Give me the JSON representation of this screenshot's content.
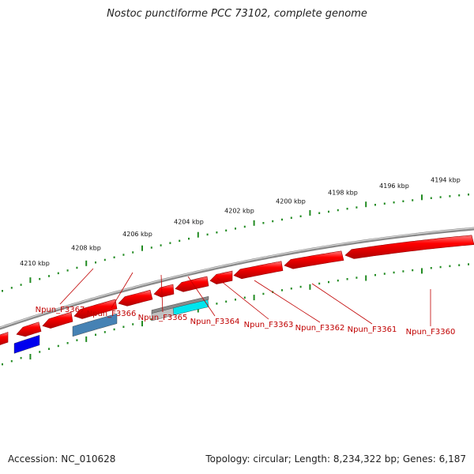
{
  "header": {
    "title": "Nostoc punctiforme PCC 73102, complete genome"
  },
  "footer": {
    "accession": "Accession: NC_010628",
    "summary": "Topology: circular; Length: 8,234,322 bp; Genes: 6,187"
  },
  "colors": {
    "gene_red": "#ff0000",
    "gene_blue": "#0000ee",
    "gene_steel": "#4682b4",
    "gene_gray": "#c0c0c0",
    "gene_cyan": "#00e5ee",
    "tick_green": "#228b22",
    "backbone": "#888888",
    "label_red": "#c00000"
  },
  "scale": {
    "unit": "kbp",
    "labels": [
      "4210 kbp",
      "4208 kbp",
      "4206 kbp",
      "4204 kbp",
      "4202 kbp",
      "4200 kbp",
      "4198 kbp",
      "4196 kbp",
      "4194 kbp"
    ]
  },
  "genes": [
    {
      "label": "Npun_F3367"
    },
    {
      "label": "Npun_F3366"
    },
    {
      "label": "Npun_F3365"
    },
    {
      "label": "Npun_F3364"
    },
    {
      "label": "Npun_F3363"
    },
    {
      "label": "Npun_F3362"
    },
    {
      "label": "Npun_F3361"
    },
    {
      "label": "Npun_F3360"
    }
  ]
}
